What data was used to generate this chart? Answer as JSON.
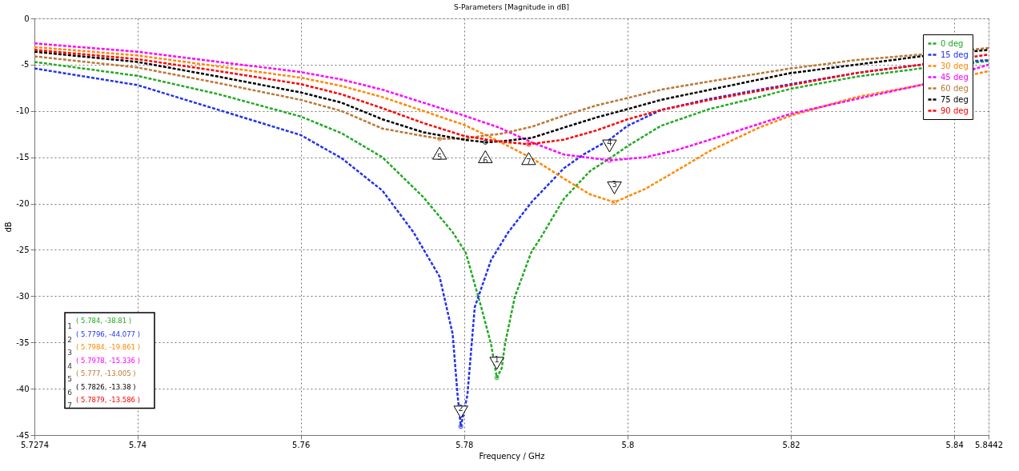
{
  "chart_data": {
    "type": "line",
    "title": "S-Parameters [Magnitude in dB]",
    "xlabel": "Frequency / GHz",
    "ylabel": "dB",
    "xlim": [
      5.7274,
      5.8442
    ],
    "xticks": [
      5.7274,
      5.74,
      5.76,
      5.78,
      5.8,
      5.82,
      5.84,
      5.8442
    ],
    "ylim": [
      -45,
      0
    ],
    "yticks": [
      0,
      -5,
      -10,
      -15,
      -20,
      -25,
      -30,
      -35,
      -40,
      -45
    ],
    "grid": true,
    "legend": "top right",
    "line_style": "dashed",
    "marker": "none",
    "series": [
      {
        "name": "0 deg",
        "color": "#22aa22",
        "x": [
          5.7274,
          5.74,
          5.75,
          5.76,
          5.765,
          5.77,
          5.775,
          5.7786,
          5.7802,
          5.7821,
          5.7833,
          5.784,
          5.7846,
          5.785,
          5.7862,
          5.7882,
          5.7895,
          5.7922,
          5.7954,
          5.7982,
          5.8,
          5.8041,
          5.81,
          5.8161,
          5.82,
          5.828,
          5.8359,
          5.8442
        ],
        "values": [
          -4.7,
          -6.2,
          -8.2,
          -10.6,
          -12.4,
          -15.0,
          -19.3,
          -23.1,
          -25.3,
          -31.2,
          -35.2,
          -38.81,
          -37.8,
          -35.2,
          -30.1,
          -25.3,
          -23.5,
          -19.5,
          -16.5,
          -14.9,
          -13.8,
          -11.6,
          -9.8,
          -8.5,
          -7.6,
          -6.3,
          -5.4,
          -4.6
        ]
      },
      {
        "name": "15 deg",
        "color": "#2233ee",
        "x": [
          5.7274,
          5.74,
          5.75,
          5.76,
          5.765,
          5.77,
          5.7738,
          5.777,
          5.7786,
          5.7792,
          5.7796,
          5.7804,
          5.7813,
          5.7833,
          5.7854,
          5.7883,
          5.7922,
          5.7946,
          5.7978,
          5.8,
          5.8041,
          5.81,
          5.8161,
          5.82,
          5.828,
          5.8359,
          5.8442
        ],
        "values": [
          -5.4,
          -7.2,
          -9.9,
          -12.6,
          -15.1,
          -18.6,
          -23.1,
          -27.9,
          -34.1,
          -40.7,
          -44.077,
          -40.7,
          -31.2,
          -26.1,
          -23.1,
          -19.8,
          -16.2,
          -14.7,
          -13.1,
          -11.6,
          -9.9,
          -8.7,
          -7.7,
          -7.1,
          -5.9,
          -5.0,
          -4.5
        ]
      },
      {
        "name": "30 deg",
        "color": "#ff8800",
        "x": [
          5.7274,
          5.74,
          5.75,
          5.76,
          5.765,
          5.77,
          5.775,
          5.78,
          5.7829,
          5.7843,
          5.7883,
          5.7922,
          5.7954,
          5.7984,
          5.8022,
          5.8061,
          5.8101,
          5.8161,
          5.82,
          5.828,
          5.8359,
          5.8442
        ],
        "values": [
          -3.1,
          -4.0,
          -5.2,
          -6.4,
          -7.3,
          -8.5,
          -10.0,
          -11.5,
          -12.7,
          -13.3,
          -15.1,
          -17.3,
          -19.0,
          -19.861,
          -18.4,
          -16.4,
          -14.3,
          -11.8,
          -10.5,
          -8.5,
          -7.2,
          -5.7
        ]
      },
      {
        "name": "45 deg",
        "color": "#ff00ff",
        "x": [
          5.7274,
          5.74,
          5.75,
          5.76,
          5.765,
          5.77,
          5.775,
          5.78,
          5.7843,
          5.7883,
          5.7922,
          5.7978,
          5.8022,
          5.8061,
          5.8101,
          5.8161,
          5.82,
          5.828,
          5.8359,
          5.8442
        ],
        "values": [
          -2.7,
          -3.6,
          -4.7,
          -5.8,
          -6.6,
          -7.7,
          -9.1,
          -10.5,
          -11.8,
          -13.4,
          -14.7,
          -15.336,
          -15.0,
          -14.2,
          -13.1,
          -11.4,
          -10.3,
          -8.7,
          -7.2,
          -5.0
        ]
      },
      {
        "name": "60 deg",
        "color": "#bb7733",
        "x": [
          5.7274,
          5.74,
          5.75,
          5.76,
          5.765,
          5.77,
          5.775,
          5.777,
          5.78,
          5.7829,
          5.7843,
          5.7883,
          5.7922,
          5.7962,
          5.8,
          5.8041,
          5.8101,
          5.82,
          5.828,
          5.8359,
          5.8442
        ],
        "values": [
          -4.1,
          -5.3,
          -7.0,
          -8.8,
          -10.0,
          -11.9,
          -12.7,
          -13.005,
          -13.0,
          -12.6,
          -12.5,
          -11.7,
          -10.5,
          -9.4,
          -8.6,
          -7.7,
          -6.8,
          -5.4,
          -4.5,
          -3.9,
          -3.2
        ]
      },
      {
        "name": "75 deg",
        "color": "#000000",
        "x": [
          5.7274,
          5.74,
          5.75,
          5.76,
          5.765,
          5.77,
          5.775,
          5.78,
          5.7826,
          5.7843,
          5.7883,
          5.7922,
          5.7962,
          5.8,
          5.8041,
          5.8101,
          5.82,
          5.828,
          5.8359,
          5.8442
        ],
        "values": [
          -3.6,
          -4.7,
          -6.3,
          -8.0,
          -9.1,
          -10.9,
          -12.3,
          -13.1,
          -13.38,
          -13.3,
          -12.9,
          -11.8,
          -10.7,
          -9.8,
          -8.8,
          -7.7,
          -5.9,
          -5.0,
          -4.1,
          -3.4
        ]
      },
      {
        "name": "90 deg",
        "color": "#ff0000",
        "x": [
          5.7274,
          5.74,
          5.75,
          5.76,
          5.765,
          5.77,
          5.775,
          5.78,
          5.7843,
          5.7879,
          5.7922,
          5.7962,
          5.8,
          5.8041,
          5.8101,
          5.82,
          5.828,
          5.8359,
          5.8442
        ],
        "values": [
          -3.4,
          -4.4,
          -5.7,
          -7.1,
          -8.2,
          -9.7,
          -11.3,
          -12.7,
          -13.3,
          -13.586,
          -13.1,
          -12.1,
          -10.9,
          -9.9,
          -8.8,
          -7.2,
          -5.9,
          -5.0,
          -3.9
        ]
      }
    ],
    "annotations": [
      {
        "text": "1",
        "x": 5.784,
        "y": -38.81
      },
      {
        "text": "2",
        "x": 5.7796,
        "y": -44.077
      },
      {
        "text": "3",
        "x": 5.7984,
        "y": -19.861
      },
      {
        "text": "4",
        "x": 5.7978,
        "y": -15.336
      },
      {
        "text": "5",
        "x": 5.777,
        "y": -13.005
      },
      {
        "text": "6",
        "x": 5.7826,
        "y": -13.38
      },
      {
        "text": "7",
        "x": 5.7879,
        "y": -13.586
      },
      "( 5.784, -38.81 )",
      "( 5.7796, -44.077 )",
      "( 5.7984, -19.861 )",
      "( 5.7978, -15.336 )",
      "( 5.777, -13.005 )",
      "( 5.7826, -13.38 )",
      "( 5.7879, -13.586 )"
    ]
  }
}
